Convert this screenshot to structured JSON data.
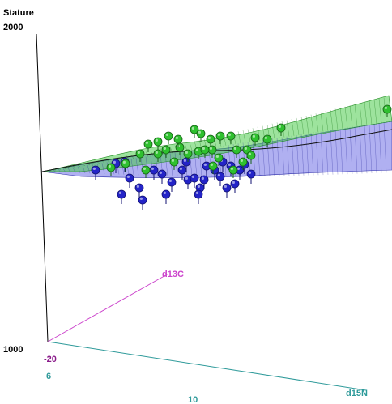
{
  "chart_data": {
    "type": "scatter",
    "title": "",
    "axes": {
      "z": {
        "label": "Stature",
        "min_label": "1000",
        "max_label": "2000",
        "range": [
          1000,
          2000
        ]
      },
      "x": {
        "label": "d15N",
        "ticks": [
          "6",
          "10"
        ]
      },
      "y": {
        "label": "d13C",
        "ticks": [
          "-20"
        ]
      }
    },
    "colors": {
      "z_axis": "#000000",
      "x_axis": "#2e9a9a",
      "y_axis": "#cc44cc",
      "green_points": "#2fc02f",
      "blue_points": "#2424c8",
      "green_surface": "#3cc83c",
      "blue_surface": "#5050e0"
    },
    "series": [
      {
        "color": "green",
        "points_screen_estimated": [
          [
            137,
            207
          ],
          [
            155,
            202
          ],
          [
            173,
            190
          ],
          [
            183,
            178
          ],
          [
            195,
            175
          ],
          [
            208,
            168
          ],
          [
            205,
            185
          ],
          [
            222,
            182
          ],
          [
            240,
            160
          ],
          [
            248,
            165
          ],
          [
            245,
            187
          ],
          [
            260,
            172
          ],
          [
            272,
            168
          ],
          [
            285,
            168
          ],
          [
            292,
            185
          ],
          [
            305,
            185
          ],
          [
            315,
            170
          ],
          [
            330,
            172
          ],
          [
            347,
            158
          ],
          [
            262,
            185
          ],
          [
            232,
            190
          ],
          [
            270,
            195
          ],
          [
            288,
            210
          ],
          [
            300,
            200
          ],
          [
            180,
            210
          ],
          [
            215,
            200
          ],
          [
            263,
            205
          ],
          [
            310,
            192
          ],
          [
            195,
            190
          ],
          [
            220,
            172
          ],
          [
            478,
            135
          ],
          [
            253,
            185
          ]
        ]
      },
      {
        "color": "blue",
        "points_screen_estimated": [
          [
            118,
            210
          ],
          [
            143,
            202
          ],
          [
            154,
            200
          ],
          [
            150,
            240
          ],
          [
            172,
            232
          ],
          [
            176,
            247
          ],
          [
            212,
            225
          ],
          [
            232,
            222
          ],
          [
            240,
            220
          ],
          [
            247,
            232
          ],
          [
            252,
            222
          ],
          [
            265,
            210
          ],
          [
            272,
            218
          ],
          [
            280,
            232
          ],
          [
            290,
            227
          ],
          [
            296,
            210
          ],
          [
            302,
            203
          ],
          [
            310,
            215
          ],
          [
            160,
            220
          ],
          [
            200,
            215
          ],
          [
            225,
            210
          ],
          [
            255,
            205
          ],
          [
            285,
            205
          ],
          [
            245,
            240
          ],
          [
            275,
            200
          ],
          [
            190,
            210
          ],
          [
            230,
            200
          ],
          [
            205,
            240
          ]
        ]
      }
    ]
  }
}
